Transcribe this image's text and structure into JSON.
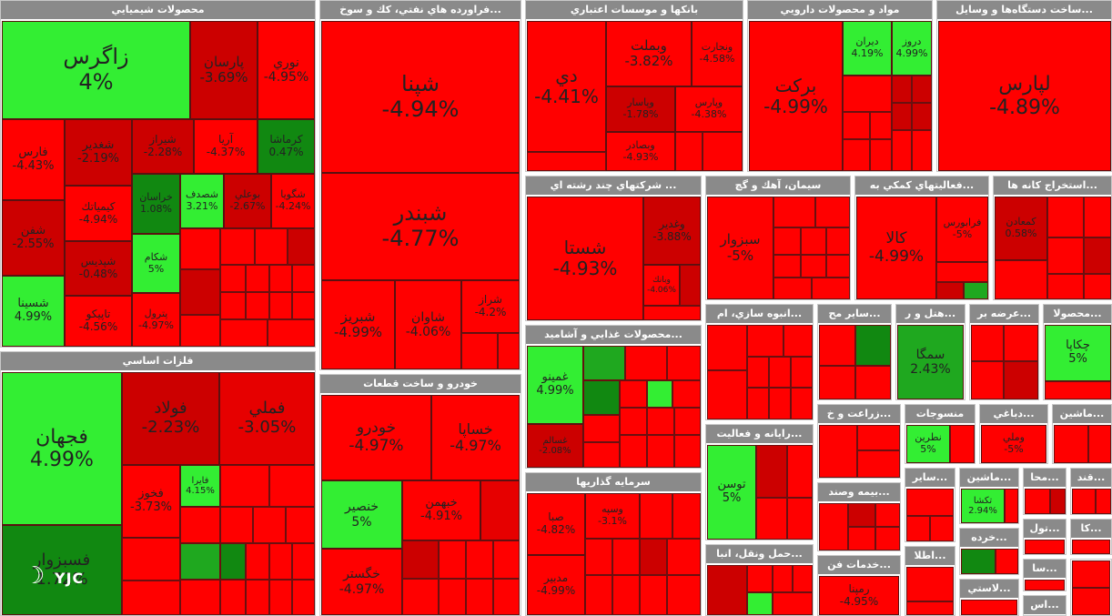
{
  "colors": {
    "decline_strong": "#ff0000",
    "decline": "#cc0000",
    "gain_strong": "#33ee33",
    "gain": "#118811",
    "header": "#8a8a8a"
  },
  "sectors": [
    {
      "id": "chem",
      "title": "محصولات شيميايي"
    },
    {
      "id": "oil",
      "title": "...فراورده هاي نفتي، كك و سوخ"
    },
    {
      "id": "banks",
      "title": "بانكها و موسسات اعتباري"
    },
    {
      "id": "pharma",
      "title": "مواد و محصولات دارويي"
    },
    {
      "id": "devices",
      "title": "...ساخت دستگاه‌ها و وسايل"
    },
    {
      "id": "metals",
      "title": "فلزات اساسي"
    },
    {
      "id": "multi",
      "title": "... شركتهاي چند رشته اي"
    },
    {
      "id": "cement",
      "title": "سيمان، آهك و گچ"
    },
    {
      "id": "aux",
      "title": "...فعاليتهاي كمكي به"
    },
    {
      "id": "mining",
      "title": "...استخراج كانه ها"
    },
    {
      "id": "food",
      "title": "...محصولات غذايي و آشاميد"
    },
    {
      "id": "mass",
      "title": "...انبوه سازي، ام"
    },
    {
      "id": "other",
      "title": "...ساير مح"
    },
    {
      "id": "hotel",
      "title": "...هتل و ر"
    },
    {
      "id": "supply",
      "title": "...عرضه بر"
    },
    {
      "id": "prod",
      "title": "...محصولا"
    },
    {
      "id": "auto",
      "title": "خودرو و ساخت قطعات"
    },
    {
      "id": "it",
      "title": "...رايانه و فعاليت"
    },
    {
      "id": "agri",
      "title": "...زراعت و خ"
    },
    {
      "id": "textile",
      "title": "منسوجات"
    },
    {
      "id": "leather",
      "title": "...دباغي"
    },
    {
      "id": "machine",
      "title": "...ماشين"
    },
    {
      "id": "invest",
      "title": "سرمايه گذاريها"
    },
    {
      "id": "insure",
      "title": "...بيمه وصند"
    },
    {
      "id": "other2",
      "title": "...ساير"
    },
    {
      "id": "machine2",
      "title": "...ماشين"
    },
    {
      "id": "mta",
      "title": "...محا"
    },
    {
      "id": "qnd",
      "title": "...قند"
    },
    {
      "id": "trans",
      "title": "...حمل ونقل، انبا"
    },
    {
      "id": "services",
      "title": "...خدمات فن"
    },
    {
      "id": "telecom",
      "title": "...اطلا"
    },
    {
      "id": "retail",
      "title": "...خرده"
    },
    {
      "id": "tool",
      "title": "...تول"
    },
    {
      "id": "ka",
      "title": "...كا"
    },
    {
      "id": "plastic",
      "title": "...لاستي"
    },
    {
      "id": "sa",
      "title": "...سا"
    },
    {
      "id": "as",
      "title": "...اس"
    }
  ],
  "tiles": {
    "zagros": {
      "name": "زاگرس",
      "pct": "4%"
    },
    "parsan": {
      "name": "پارسان",
      "pct": "-3.69%"
    },
    "noori": {
      "name": "نوري",
      "pct": "-4.95%"
    },
    "fars": {
      "name": "فارس",
      "pct": "-4.43%"
    },
    "shkhbr": {
      "name": "شغدير",
      "pct": "-2.19%"
    },
    "shiraz": {
      "name": "شيراز",
      "pct": "-2.28%"
    },
    "arya": {
      "name": "آريا",
      "pct": "-4.37%"
    },
    "kermasha": {
      "name": "كرماشا",
      "pct": "0.47%"
    },
    "shfn": {
      "name": "شفن",
      "pct": "-2.55%"
    },
    "kimiatek": {
      "name": "كيمياتك",
      "pct": "-4.94%"
    },
    "khorasan": {
      "name": "خراسان",
      "pct": "1.08%"
    },
    "shsdf": {
      "name": "شصدف",
      "pct": "3.21%"
    },
    "boomi": {
      "name": "بوعلي",
      "pct": "-2.67%"
    },
    "shgoya": {
      "name": "شگويا",
      "pct": "-4.24%"
    },
    "shpdis": {
      "name": "شپديس",
      "pct": "-0.48%"
    },
    "shkam": {
      "name": "شكام",
      "pct": "5%"
    },
    "shsina": {
      "name": "شسينا",
      "pct": "4.99%"
    },
    "tapiko": {
      "name": "تاپيكو",
      "pct": "-4.56%"
    },
    "petrol": {
      "name": "پترول",
      "pct": "-4.97%"
    },
    "shpna": {
      "name": "شپنا",
      "pct": "-4.94%"
    },
    "shbndr": {
      "name": "شبندر",
      "pct": "-4.77%"
    },
    "shbriz": {
      "name": "شبريز",
      "pct": "-4.99%"
    },
    "shavan": {
      "name": "شاوان",
      "pct": "-4.06%"
    },
    "sraz": {
      "name": "شراز",
      "pct": "-4.2%"
    },
    "dey": {
      "name": "دي",
      "pct": "-4.41%"
    },
    "vbmlt": {
      "name": "وبملت",
      "pct": "-3.82%"
    },
    "vnjr": {
      "name": "ونجارت",
      "pct": "-4.58%"
    },
    "vpasar": {
      "name": "وپاسار",
      "pct": "-1.78%"
    },
    "vprs": {
      "name": "وپارس",
      "pct": "-4.38%"
    },
    "vsdr": {
      "name": "وبصادر",
      "pct": "-4.93%"
    },
    "barkat": {
      "name": "بركت",
      "pct": "-4.99%"
    },
    "dipran": {
      "name": "ديران",
      "pct": "4.19%"
    },
    "droz": {
      "name": "دروز",
      "pct": "4.99%"
    },
    "lipars": {
      "name": "لپارس",
      "pct": "-4.89%"
    },
    "fajhan": {
      "name": "فجهان",
      "pct": "4.99%"
    },
    "foolad": {
      "name": "فولاد",
      "pct": "-2.23%"
    },
    "fmli": {
      "name": "فملي",
      "pct": "-3.05%"
    },
    "fkhoz": {
      "name": "فخوز",
      "pct": "-3.73%"
    },
    "fapira": {
      "name": "فايرا",
      "pct": "4.15%"
    },
    "fsbzvar": {
      "name": "فسبزوار",
      "pct": "1.72%"
    },
    "shsta": {
      "name": "شستا",
      "pct": "-4.93%"
    },
    "vghdir": {
      "name": "وغدير",
      "pct": "-3.88%"
    },
    "vbank": {
      "name": "وبانك",
      "pct": "-4.06%"
    },
    "sbzvr": {
      "name": "سبزوار",
      "pct": "-5%"
    },
    "kala": {
      "name": "كالا",
      "pct": "-4.99%"
    },
    "frabors": {
      "name": "فرابورس",
      "pct": "-5%"
    },
    "kmaadn": {
      "name": "كمعادن",
      "pct": "0.58%"
    },
    "ghmino": {
      "name": "غمينو",
      "pct": "4.99%"
    },
    "ghsalem": {
      "name": "غسالم",
      "pct": "-2.08%"
    },
    "smga": {
      "name": "سمگا",
      "pct": "2.43%"
    },
    "jkapa": {
      "name": "چكاپا",
      "pct": "5%"
    },
    "khodro": {
      "name": "خودرو",
      "pct": "-4.97%"
    },
    "khsapa": {
      "name": "خساپا",
      "pct": "-4.97%"
    },
    "khnsr": {
      "name": "خنصير",
      "pct": "5%"
    },
    "khbhmn": {
      "name": "خبهمن",
      "pct": "-4.91%"
    },
    "khgstr": {
      "name": "خگستر",
      "pct": "-4.97%"
    },
    "toosn": {
      "name": "توسن",
      "pct": "5%"
    },
    "vsepe": {
      "name": "وسپه",
      "pct": "-3.1%"
    },
    "sbtr": {
      "name": "صبا",
      "pct": "-4.82%"
    },
    "mdbr": {
      "name": "مدبير",
      "pct": "-4.99%"
    },
    "ntrin": {
      "name": "نطرين",
      "pct": "5%"
    },
    "vmlli": {
      "name": "وملي",
      "pct": "-5%"
    },
    "tksa": {
      "name": "تكشا",
      "pct": "2.94%"
    },
    "ramina": {
      "name": "رمپنا",
      "pct": "-4.95%"
    }
  },
  "logo": {
    "text": "YJC"
  }
}
